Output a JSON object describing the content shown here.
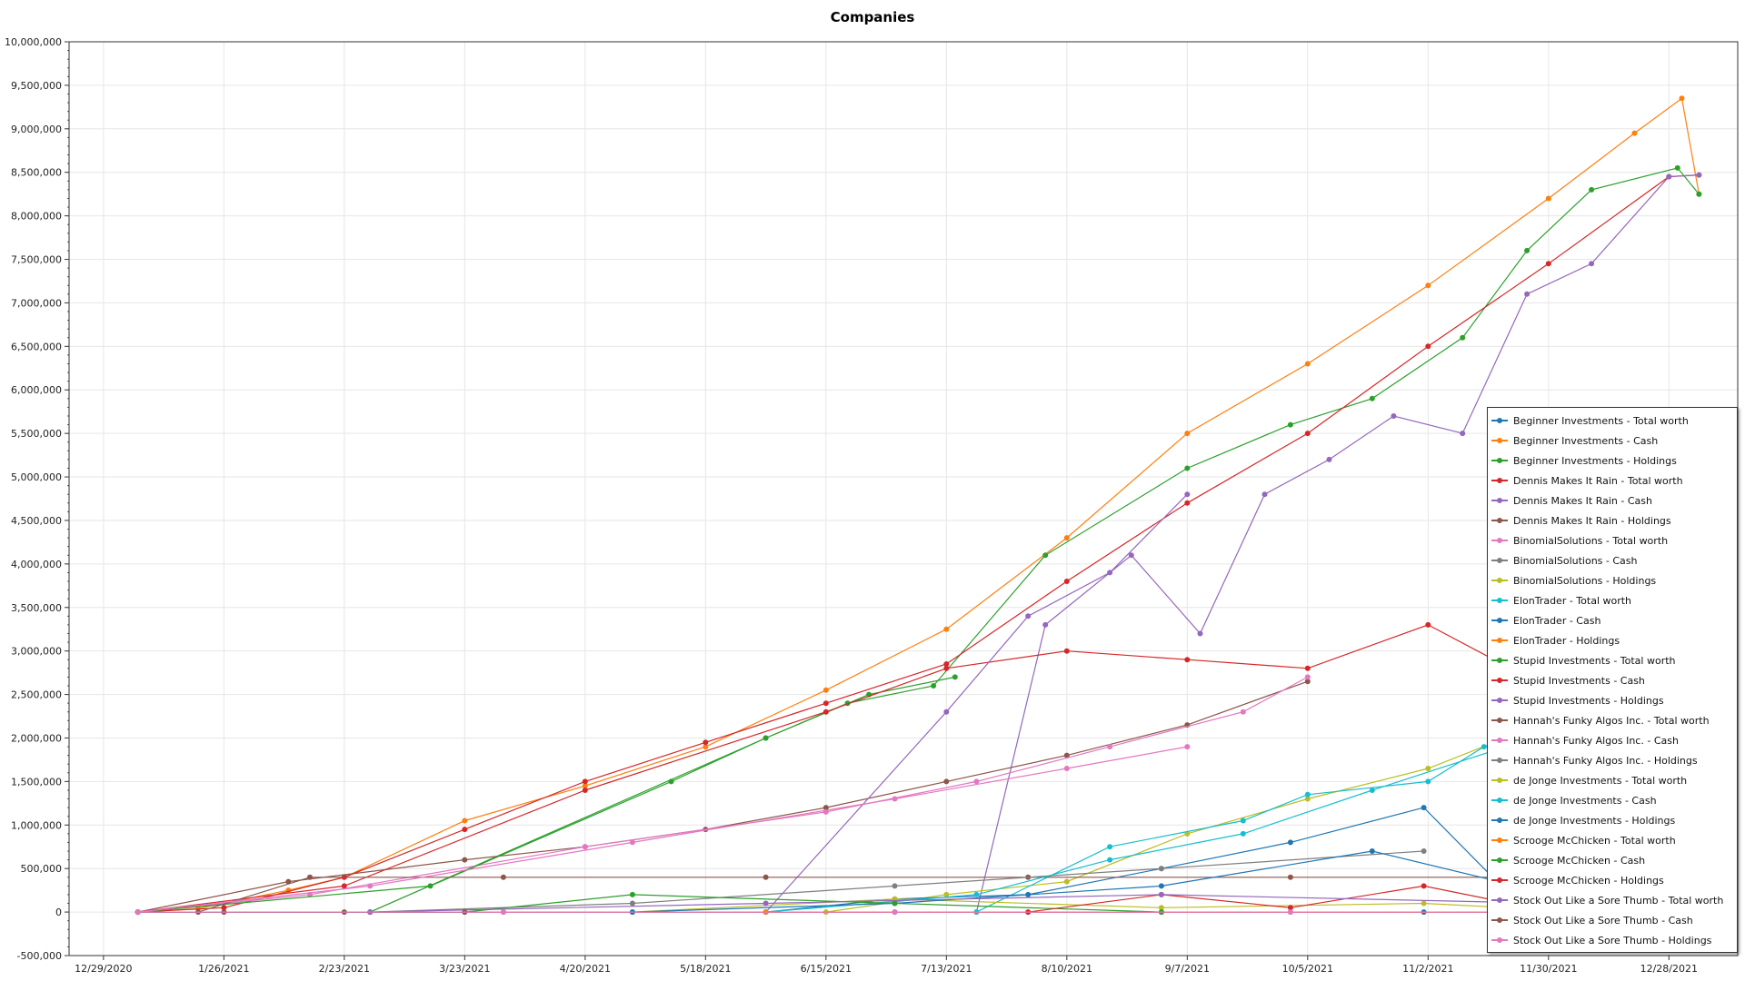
{
  "chart_data": {
    "type": "line",
    "title": "Companies",
    "xlabel": "",
    "ylabel": "",
    "grid": true,
    "legend_position": "right",
    "ylim": [
      -500000,
      10000000
    ],
    "y_ticks": [
      -500000,
      0,
      500000,
      1000000,
      1500000,
      2000000,
      2500000,
      3000000,
      3500000,
      4000000,
      4500000,
      5000000,
      5500000,
      6000000,
      6500000,
      7000000,
      7500000,
      8000000,
      8500000,
      9000000,
      9500000,
      10000000
    ],
    "y_tick_labels": [
      "-500,000",
      "0",
      "500,000",
      "1,000,000",
      "1,500,000",
      "2,000,000",
      "2,500,000",
      "3,000,000",
      "3,500,000",
      "4,000,000",
      "4,500,000",
      "5,000,000",
      "5,500,000",
      "6,000,000",
      "6,500,000",
      "7,000,000",
      "7,500,000",
      "8,000,000",
      "8,500,000",
      "9,000,000",
      "9,500,000",
      "10,000,000"
    ],
    "xlim": [
      "2020-12-21",
      "2022-01-13"
    ],
    "x_ticks": [
      "2020-12-29",
      "2021-01-26",
      "2021-02-23",
      "2021-03-23",
      "2021-04-20",
      "2021-05-18",
      "2021-06-15",
      "2021-07-13",
      "2021-08-10",
      "2021-09-07",
      "2021-10-05",
      "2021-11-02",
      "2021-11-30",
      "2021-12-28"
    ],
    "x_tick_labels": [
      "12/29/2020",
      "1/26/2021",
      "2/23/2021",
      "3/23/2021",
      "4/20/2021",
      "5/18/2021",
      "6/15/2021",
      "7/13/2021",
      "8/10/2021",
      "9/7/2021",
      "10/5/2021",
      "11/2/2021",
      "11/30/2021",
      "12/28/2021"
    ],
    "series": [
      {
        "name": "Beginner Investments - Total worth",
        "color": "#1f77b4",
        "points": [
          [
            "2021-01-06",
            0
          ],
          [
            "2021-03-01",
            0
          ],
          [
            "2021-05-01",
            0
          ],
          [
            "2021-07-01",
            0
          ],
          [
            "2021-09-01",
            0
          ],
          [
            "2021-11-01",
            0
          ],
          [
            "2021-12-20",
            0
          ]
        ]
      },
      {
        "name": "Beginner Investments - Cash",
        "color": "#ff7f0e",
        "points": [
          [
            "2021-01-06",
            0
          ],
          [
            "2021-01-20",
            40000
          ],
          [
            "2021-02-10",
            250000
          ],
          [
            "2021-02-23",
            400000
          ],
          [
            "2021-03-23",
            1050000
          ],
          [
            "2021-04-20",
            1450000
          ],
          [
            "2021-05-18",
            1900000
          ],
          [
            "2021-06-15",
            2550000
          ],
          [
            "2021-07-13",
            3250000
          ],
          [
            "2021-08-10",
            4300000
          ],
          [
            "2021-09-07",
            5500000
          ],
          [
            "2021-10-05",
            6300000
          ],
          [
            "2021-11-02",
            7200000
          ],
          [
            "2021-11-30",
            8200000
          ],
          [
            "2021-12-20",
            8950000
          ],
          [
            "2021-12-31",
            9350000
          ],
          [
            "2022-01-04",
            8250000
          ]
        ]
      },
      {
        "name": "Beginner Investments - Holdings",
        "color": "#2ca02c",
        "points": [
          [
            "2021-01-06",
            0
          ],
          [
            "2021-03-01",
            0
          ],
          [
            "2021-06-01",
            2000000
          ],
          [
            "2021-06-20",
            2400000
          ],
          [
            "2021-07-10",
            2600000
          ],
          [
            "2021-08-05",
            4100000
          ],
          [
            "2021-09-07",
            5100000
          ],
          [
            "2021-10-01",
            5600000
          ],
          [
            "2021-10-20",
            5900000
          ],
          [
            "2021-11-10",
            6600000
          ],
          [
            "2021-11-25",
            7600000
          ],
          [
            "2021-12-10",
            8300000
          ],
          [
            "2021-12-30",
            8550000
          ],
          [
            "2022-01-04",
            8250000
          ]
        ]
      },
      {
        "name": "Dennis Makes It Rain - Total worth",
        "color": "#d62728",
        "points": [
          [
            "2021-01-06",
            0
          ],
          [
            "2021-01-26",
            50000
          ],
          [
            "2021-02-23",
            400000
          ],
          [
            "2021-03-23",
            950000
          ],
          [
            "2021-04-20",
            1500000
          ],
          [
            "2021-05-18",
            1950000
          ],
          [
            "2021-06-15",
            2400000
          ],
          [
            "2021-07-13",
            2850000
          ],
          [
            "2021-08-10",
            3800000
          ],
          [
            "2021-09-07",
            4700000
          ],
          [
            "2021-10-05",
            5500000
          ],
          [
            "2021-11-02",
            6500000
          ],
          [
            "2021-11-30",
            7450000
          ],
          [
            "2021-12-28",
            8450000
          ],
          [
            "2022-01-04",
            8470000
          ]
        ]
      },
      {
        "name": "Dennis Makes It Rain - Cash",
        "color": "#9467bd",
        "points": [
          [
            "2021-07-20",
            0
          ],
          [
            "2021-08-05",
            3300000
          ],
          [
            "2021-08-25",
            4100000
          ],
          [
            "2021-09-10",
            3200000
          ],
          [
            "2021-09-25",
            4800000
          ],
          [
            "2021-10-10",
            5200000
          ],
          [
            "2021-10-25",
            5700000
          ],
          [
            "2021-11-10",
            5500000
          ],
          [
            "2021-11-25",
            7100000
          ],
          [
            "2021-12-10",
            7450000
          ],
          [
            "2021-12-28",
            8450000
          ],
          [
            "2022-01-04",
            8470000
          ]
        ]
      },
      {
        "name": "Dennis Makes It Rain - Holdings",
        "color": "#8c564b",
        "points": [
          [
            "2021-01-06",
            0
          ],
          [
            "2021-02-10",
            350000
          ],
          [
            "2021-03-23",
            600000
          ],
          [
            "2021-04-20",
            750000
          ],
          [
            "2021-05-18",
            950000
          ],
          [
            "2021-06-15",
            1200000
          ],
          [
            "2021-07-13",
            1500000
          ],
          [
            "2021-08-10",
            1800000
          ],
          [
            "2021-09-07",
            2150000
          ],
          [
            "2021-10-05",
            2650000
          ]
        ]
      },
      {
        "name": "BinomialSolutions - Total worth",
        "color": "#e377c2",
        "points": [
          [
            "2021-01-06",
            0
          ],
          [
            "2021-02-15",
            200000
          ],
          [
            "2021-04-20",
            750000
          ],
          [
            "2021-06-15",
            1150000
          ],
          [
            "2021-07-20",
            1500000
          ],
          [
            "2021-08-20",
            1900000
          ],
          [
            "2021-09-20",
            2300000
          ],
          [
            "2021-10-05",
            2700000
          ]
        ]
      },
      {
        "name": "BinomialSolutions - Cash",
        "color": "#7f7f7f",
        "points": [
          [
            "2021-01-06",
            0
          ],
          [
            "2021-04-01",
            0
          ],
          [
            "2021-07-01",
            0
          ],
          [
            "2021-10-01",
            0
          ],
          [
            "2021-12-20",
            0
          ]
        ]
      },
      {
        "name": "BinomialSolutions - Holdings",
        "color": "#bcbd22",
        "points": [
          [
            "2021-06-15",
            0
          ],
          [
            "2021-07-13",
            200000
          ],
          [
            "2021-08-10",
            350000
          ],
          [
            "2021-09-07",
            900000
          ],
          [
            "2021-10-05",
            1300000
          ],
          [
            "2021-11-02",
            1650000
          ],
          [
            "2021-11-20",
            2000000
          ]
        ]
      },
      {
        "name": "ElonTrader - Total worth",
        "color": "#17becf",
        "points": [
          [
            "2021-07-20",
            0
          ],
          [
            "2021-08-20",
            750000
          ],
          [
            "2021-09-20",
            1050000
          ],
          [
            "2021-10-05",
            1350000
          ],
          [
            "2021-11-02",
            1500000
          ],
          [
            "2021-11-15",
            1900000
          ],
          [
            "2021-11-25",
            2000000
          ]
        ]
      },
      {
        "name": "ElonTrader - Cash",
        "color": "#1f77b4",
        "points": [
          [
            "2021-06-01",
            0
          ],
          [
            "2021-07-01",
            150000
          ],
          [
            "2021-08-01",
            200000
          ],
          [
            "2021-09-01",
            500000
          ],
          [
            "2021-10-01",
            800000
          ],
          [
            "2021-11-01",
            1200000
          ],
          [
            "2021-11-25",
            0
          ]
        ]
      },
      {
        "name": "ElonTrader - Holdings",
        "color": "#ff7f0e",
        "points": [
          [
            "2021-01-06",
            0
          ],
          [
            "2021-04-01",
            0
          ],
          [
            "2021-08-01",
            0
          ],
          [
            "2021-12-01",
            0
          ]
        ]
      },
      {
        "name": "Stupid Investments - Total worth",
        "color": "#2ca02c",
        "points": [
          [
            "2021-01-06",
            0
          ],
          [
            "2021-03-15",
            300000
          ],
          [
            "2021-05-10",
            1500000
          ],
          [
            "2021-06-01",
            2000000
          ],
          [
            "2021-06-25",
            2500000
          ],
          [
            "2021-07-15",
            2700000
          ]
        ]
      },
      {
        "name": "Stupid Investments - Cash",
        "color": "#d62728",
        "points": [
          [
            "2021-01-06",
            0
          ],
          [
            "2021-02-23",
            300000
          ],
          [
            "2021-04-20",
            1400000
          ],
          [
            "2021-06-15",
            2300000
          ],
          [
            "2021-07-13",
            2800000
          ],
          [
            "2021-08-10",
            3000000
          ],
          [
            "2021-09-07",
            2900000
          ],
          [
            "2021-10-05",
            2800000
          ],
          [
            "2021-11-02",
            3300000
          ],
          [
            "2021-11-25",
            2700000
          ]
        ]
      },
      {
        "name": "Stupid Investments - Holdings",
        "color": "#9467bd",
        "points": [
          [
            "2021-06-01",
            0
          ],
          [
            "2021-07-13",
            2300000
          ],
          [
            "2021-08-01",
            3400000
          ],
          [
            "2021-08-20",
            3900000
          ],
          [
            "2021-09-07",
            4800000
          ]
        ]
      },
      {
        "name": "Hannah's Funky Algos Inc. - Total worth",
        "color": "#8c564b",
        "points": [
          [
            "2021-01-20",
            0
          ],
          [
            "2021-02-15",
            400000
          ],
          [
            "2021-04-01",
            400000
          ],
          [
            "2021-06-01",
            400000
          ],
          [
            "2021-08-01",
            400000
          ],
          [
            "2021-10-01",
            400000
          ],
          [
            "2021-12-01",
            400000
          ]
        ]
      },
      {
        "name": "Hannah's Funky Algos Inc. - Cash",
        "color": "#e377c2",
        "points": [
          [
            "2021-01-06",
            0
          ],
          [
            "2021-03-01",
            300000
          ],
          [
            "2021-05-01",
            800000
          ],
          [
            "2021-07-01",
            1300000
          ],
          [
            "2021-08-10",
            1650000
          ],
          [
            "2021-09-07",
            1900000
          ]
        ]
      },
      {
        "name": "Hannah's Funky Algos Inc. - Holdings",
        "color": "#7f7f7f",
        "points": [
          [
            "2021-03-01",
            0
          ],
          [
            "2021-05-01",
            100000
          ],
          [
            "2021-07-01",
            300000
          ],
          [
            "2021-09-01",
            500000
          ],
          [
            "2021-11-01",
            700000
          ]
        ]
      },
      {
        "name": "de Jonge Investments - Total worth",
        "color": "#bcbd22",
        "points": [
          [
            "2021-05-01",
            0
          ],
          [
            "2021-07-01",
            150000
          ],
          [
            "2021-09-01",
            50000
          ],
          [
            "2021-11-01",
            100000
          ],
          [
            "2021-12-10",
            0
          ]
        ]
      },
      {
        "name": "de Jonge Investments - Cash",
        "color": "#17becf",
        "points": [
          [
            "2021-06-01",
            0
          ],
          [
            "2021-07-20",
            200000
          ],
          [
            "2021-08-20",
            600000
          ],
          [
            "2021-09-20",
            900000
          ],
          [
            "2021-10-20",
            1400000
          ],
          [
            "2021-11-20",
            1900000
          ]
        ]
      },
      {
        "name": "de Jonge Investments - Holdings",
        "color": "#1f77b4",
        "points": [
          [
            "2021-05-01",
            0
          ],
          [
            "2021-07-01",
            100000
          ],
          [
            "2021-09-01",
            300000
          ],
          [
            "2021-10-20",
            700000
          ],
          [
            "2021-12-01",
            200000
          ]
        ]
      },
      {
        "name": "Scrooge McChicken - Total worth",
        "color": "#ff7f0e",
        "points": [
          [
            "2021-06-01",
            0
          ],
          [
            "2021-09-01",
            0
          ],
          [
            "2021-12-01",
            0
          ]
        ]
      },
      {
        "name": "Scrooge McChicken - Cash",
        "color": "#2ca02c",
        "points": [
          [
            "2021-01-06",
            0
          ],
          [
            "2021-03-23",
            0
          ],
          [
            "2021-05-01",
            200000
          ],
          [
            "2021-07-01",
            100000
          ],
          [
            "2021-09-01",
            0
          ]
        ]
      },
      {
        "name": "Scrooge McChicken - Holdings",
        "color": "#d62728",
        "points": [
          [
            "2021-08-01",
            0
          ],
          [
            "2021-09-01",
            200000
          ],
          [
            "2021-10-01",
            50000
          ],
          [
            "2021-11-01",
            300000
          ],
          [
            "2021-12-01",
            0
          ]
        ]
      },
      {
        "name": "Stock Out Like a Sore Thumb - Total worth",
        "color": "#9467bd",
        "points": [
          [
            "2021-03-01",
            0
          ],
          [
            "2021-06-01",
            100000
          ],
          [
            "2021-09-01",
            200000
          ],
          [
            "2021-12-01",
            100000
          ]
        ]
      },
      {
        "name": "Stock Out Like a Sore Thumb - Cash",
        "color": "#8c564b",
        "points": [
          [
            "2021-01-06",
            0
          ],
          [
            "2021-01-26",
            0
          ],
          [
            "2021-02-23",
            0
          ],
          [
            "2021-03-23",
            0
          ]
        ]
      },
      {
        "name": "Stock Out Like a Sore Thumb - Holdings",
        "color": "#e377c2",
        "points": [
          [
            "2021-01-06",
            0
          ],
          [
            "2021-04-01",
            0
          ],
          [
            "2021-07-01",
            0
          ],
          [
            "2021-10-01",
            0
          ],
          [
            "2021-12-20",
            0
          ]
        ]
      }
    ]
  }
}
